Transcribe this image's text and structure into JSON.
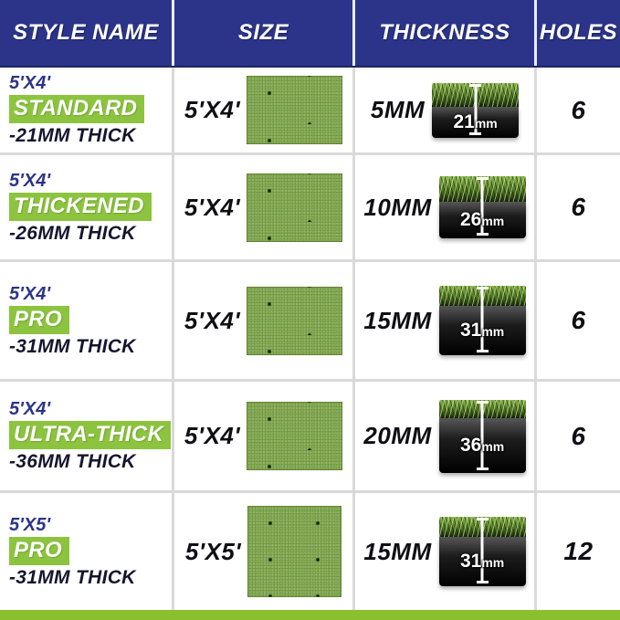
{
  "table": {
    "headers": [
      "STYLE NAME",
      "SIZE",
      "THICKNESS",
      "HOLES"
    ],
    "rows": [
      {
        "style": {
          "size_tag": "5'X4'",
          "name": "STANDARD",
          "thick_tag": "-21MM THICK"
        },
        "size": "5'X4'",
        "thickness": "5MM",
        "cross_section": {
          "value": "21",
          "unit": "mm"
        },
        "holes": "6"
      },
      {
        "style": {
          "size_tag": "5'X4'",
          "name": "THICKENED",
          "thick_tag": "-26MM THICK"
        },
        "size": "5'X4'",
        "thickness": "10MM",
        "cross_section": {
          "value": "26",
          "unit": "mm"
        },
        "holes": "6"
      },
      {
        "style": {
          "size_tag": "5'X4'",
          "name": "PRO",
          "thick_tag": "-31MM THICK"
        },
        "size": "5'X4'",
        "thickness": "15MM",
        "cross_section": {
          "value": "31",
          "unit": "mm"
        },
        "holes": "6"
      },
      {
        "style": {
          "size_tag": "5'X4'",
          "name": "ULTRA-THICK",
          "thick_tag": "-36MM THICK"
        },
        "size": "5'X4'",
        "thickness": "20MM",
        "cross_section": {
          "value": "36",
          "unit": "mm"
        },
        "holes": "6"
      },
      {
        "style": {
          "size_tag": "5'X5'",
          "name": "PRO",
          "thick_tag": "-31MM THICK"
        },
        "size": "5'X5'",
        "thickness": "15MM",
        "cross_section": {
          "value": "31",
          "unit": "mm"
        },
        "holes": "12"
      }
    ]
  },
  "colors": {
    "header_bg": "#2b3489",
    "accent_green": "#8cc43f",
    "bottom_bar": "#8abf2d",
    "navy_text": "#2b3489",
    "dark_text": "#16152e",
    "divider": "#d9d9d9"
  }
}
